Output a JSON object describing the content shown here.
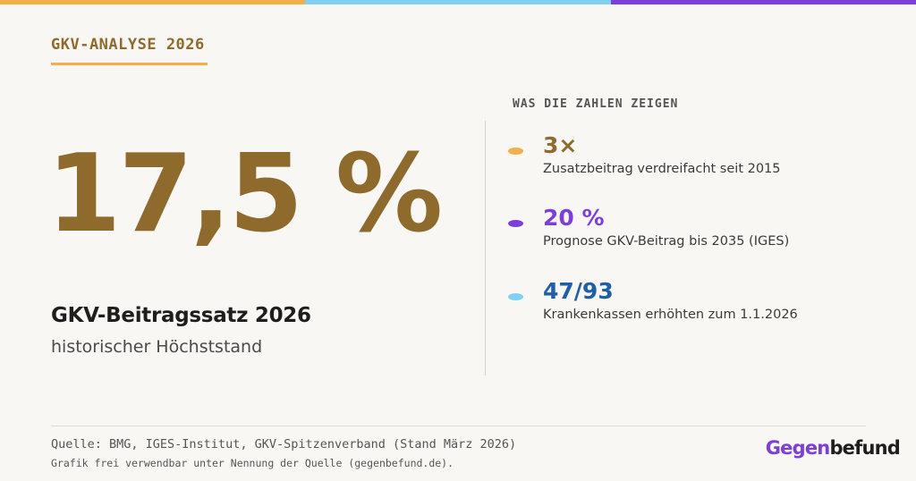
{
  "colors": {
    "orange": "#f2b04a",
    "cyan": "#7fd0f2",
    "purple": "#7d3fd8",
    "gold": "#8e6b2c",
    "blue": "#1f5fa6",
    "dark": "#1e1e1e"
  },
  "header": {
    "kicker": "GKV-ANALYSE 2026"
  },
  "hero": {
    "value": "17,5 %",
    "title": "GKV-Beitragssatz 2026",
    "description": "historischer Höchststand"
  },
  "panel": {
    "heading": "WAS DIE ZAHLEN ZEIGEN",
    "stats": [
      {
        "value": "3×",
        "label": "Zusatzbeitrag verdreifacht seit 2015",
        "value_color": "#8e6b2c",
        "dot_color": "#f2b04a"
      },
      {
        "value": "20 %",
        "label": "Prognose GKV-Beitrag bis 2035 (IGES)",
        "value_color": "#7d3fd8",
        "dot_color": "#7d3fd8"
      },
      {
        "value": "47/93",
        "label": "Krankenkassen erhöhten zum 1.1.2026",
        "value_color": "#1f5fa6",
        "dot_color": "#7fd0f2"
      }
    ]
  },
  "footer": {
    "source": "Quelle: BMG, IGES-Institut, GKV-Spitzenverband (Stand März 2026)",
    "note": "Grafik frei verwendbar unter Nennung der Quelle (gegenbefund.de).",
    "logo_part1": "Gegen",
    "logo_part2": "befund"
  }
}
